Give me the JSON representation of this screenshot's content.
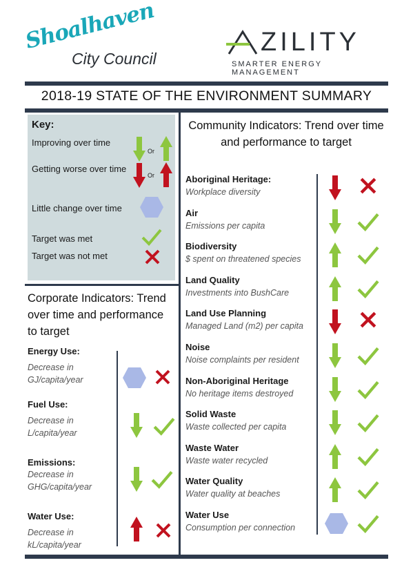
{
  "logos": {
    "shoalhaven": {
      "name": "Shoalhaven",
      "subtitle": "City Council"
    },
    "azility": {
      "name": "ZILITY",
      "tagline": "SMARTER ENERGY MANAGEMENT"
    }
  },
  "title": "2018-19 STATE OF THE ENVIRONMENT SUMMARY",
  "key": {
    "heading": "Key:",
    "or_label": "Or",
    "items": [
      {
        "label": "Improving over time",
        "icon": "green-arrows-down-up-icon"
      },
      {
        "label": "Getting worse over time",
        "icon": "red-arrows-down-up-icon"
      },
      {
        "label": "Little change over time",
        "icon": "blue-hexagon-icon"
      },
      {
        "label": "Target was met",
        "icon": "green-check-icon"
      },
      {
        "label": "Target was not met",
        "icon": "red-cross-icon"
      }
    ]
  },
  "corporate": {
    "heading": "Corporate Indicators: Trend over  time and performance to target",
    "items": [
      {
        "title": "Energy Use:",
        "subtitle": "Decrease in GJ/capita/year",
        "trend": "hexagon",
        "target": "cross"
      },
      {
        "title": "Fuel Use:",
        "subtitle": "Decrease in L/capita/year",
        "trend": "green-down",
        "target": "check"
      },
      {
        "title": "Emissions:",
        "subtitle": "Decrease in GHG/capita/year",
        "trend": "green-down",
        "target": "check"
      },
      {
        "title": "Water Use:",
        "subtitle": "Decrease in kL/capita/year",
        "trend": "red-up",
        "target": "cross"
      }
    ]
  },
  "community": {
    "heading": "Community Indicators: Trend over time and performance to target",
    "items": [
      {
        "title": "Aboriginal Heritage:",
        "subtitle": "Workplace diversity",
        "trend": "red-down",
        "target": "cross"
      },
      {
        "title": "Air",
        "subtitle": "Emissions per capita",
        "trend": "green-down",
        "target": "check"
      },
      {
        "title": "Biodiversity",
        "subtitle": "$ spent on threatened species",
        "trend": "green-up",
        "target": "check"
      },
      {
        "title": "Land Quality",
        "subtitle": "Investments into BushCare",
        "trend": "green-up",
        "target": "check"
      },
      {
        "title": "Land Use Planning",
        "subtitle": "Managed Land (m2) per capita",
        "trend": "red-down",
        "target": "cross"
      },
      {
        "title": "Noise",
        "subtitle": "Noise complaints per resident",
        "trend": "green-down",
        "target": "check"
      },
      {
        "title": "Non-Aboriginal Heritage",
        "subtitle": "No heritage items destroyed",
        "trend": "green-down",
        "target": "check"
      },
      {
        "title": "Solid Waste",
        "subtitle": "Waste collected per capita",
        "trend": "green-down",
        "target": "check"
      },
      {
        "title": "Waste Water",
        "subtitle": "Waste water recycled",
        "trend": "green-up",
        "target": "check"
      },
      {
        "title": "Water Quality",
        "subtitle": "Water quality at beaches",
        "trend": "green-up",
        "target": "check"
      },
      {
        "title": "Water Use",
        "subtitle": "Consumption per connection",
        "trend": "hexagon",
        "target": "check"
      }
    ]
  },
  "colors": {
    "green": "#8dc63f",
    "red": "#c1121f",
    "hexagon": "#a9b8e6",
    "bar": "#2e3a4c",
    "key_bg": "#cfdbdd",
    "teal": "#1aa7b8"
  }
}
